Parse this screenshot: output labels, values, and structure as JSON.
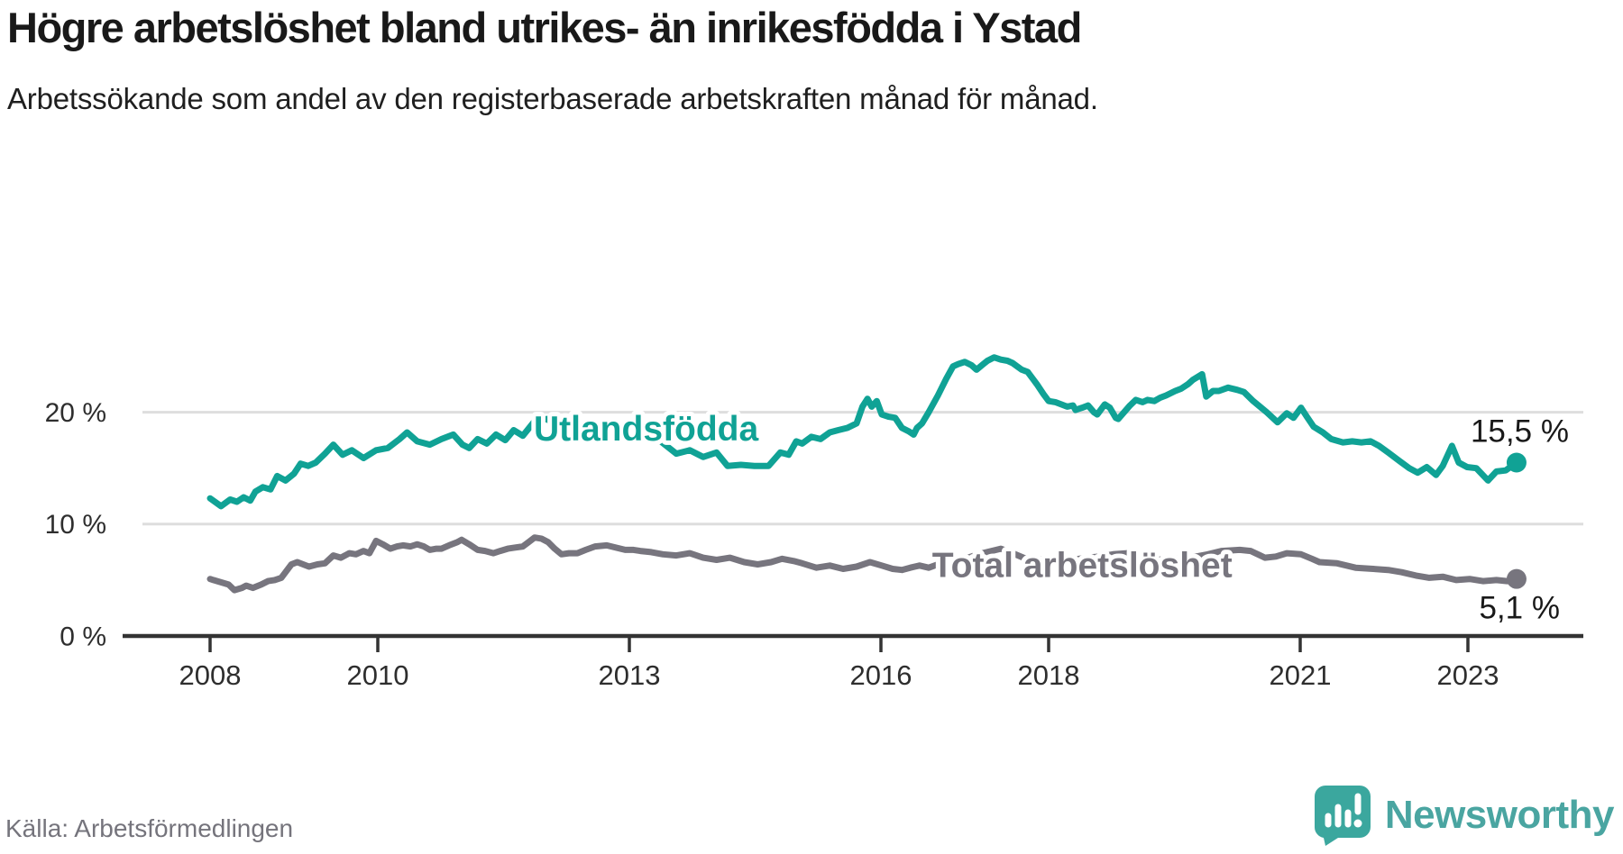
{
  "header": {
    "title": "Högre arbetslöshet bland utrikes- än inrikesfödda i Ystad",
    "subtitle": "Arbetssökande som andel av den registerbaserade arbetskraften månad för månad."
  },
  "footer": {
    "source": "Källa: Arbetsförmedlingen",
    "brand": "Newsworthy"
  },
  "colors": {
    "teal_line": "#10a295",
    "gray_line": "#77757e",
    "grid": "#dedede",
    "axis": "#333333",
    "tick_text": "#2e2e2e",
    "value_text": "#191919",
    "brand_teal": "#3ba79e"
  },
  "chart_data": {
    "type": "line",
    "title": "Högre arbetslöshet bland utrikes- än inrikesfödda i Ystad",
    "subtitle": "Arbetssökande som andel av den registerbaserade arbetskraften månad för månad.",
    "unit": "%",
    "x_axis": {
      "range": [
        2007.85,
        2024.15
      ],
      "tick_years": [
        2008,
        2010,
        2013,
        2016,
        2018,
        2021,
        2023
      ],
      "grid": false
    },
    "y_axis": {
      "range": [
        0,
        30
      ],
      "tick_values": [
        0,
        10,
        20
      ],
      "tick_labels": [
        "0 %",
        "10 %",
        "20 %"
      ],
      "grid": true
    },
    "legend_position": "inline-labels",
    "series": [
      {
        "name": "Utlandsfödda",
        "color": "#10a295",
        "end_label": "15,5 %",
        "end_value": 15.5,
        "label_pos": {
          "t": 2013.2,
          "v": 18.3
        },
        "points": [
          [
            2008.0,
            12.3
          ],
          [
            2008.13,
            11.6
          ],
          [
            2008.24,
            12.2
          ],
          [
            2008.32,
            12.0
          ],
          [
            2008.4,
            12.4
          ],
          [
            2008.48,
            12.1
          ],
          [
            2008.54,
            12.9
          ],
          [
            2008.63,
            13.3
          ],
          [
            2008.72,
            13.1
          ],
          [
            2008.8,
            14.3
          ],
          [
            2008.9,
            13.9
          ],
          [
            2009.0,
            14.5
          ],
          [
            2009.08,
            15.4
          ],
          [
            2009.17,
            15.2
          ],
          [
            2009.26,
            15.5
          ],
          [
            2009.37,
            16.3
          ],
          [
            2009.47,
            17.1
          ],
          [
            2009.58,
            16.2
          ],
          [
            2009.69,
            16.6
          ],
          [
            2009.83,
            15.9
          ],
          [
            2009.98,
            16.6
          ],
          [
            2010.12,
            16.8
          ],
          [
            2010.26,
            17.6
          ],
          [
            2010.35,
            18.2
          ],
          [
            2010.47,
            17.4
          ],
          [
            2010.62,
            17.1
          ],
          [
            2010.76,
            17.6
          ],
          [
            2010.9,
            18.0
          ],
          [
            2011.01,
            17.1
          ],
          [
            2011.09,
            16.8
          ],
          [
            2011.19,
            17.6
          ],
          [
            2011.3,
            17.2
          ],
          [
            2011.41,
            18.0
          ],
          [
            2011.52,
            17.5
          ],
          [
            2011.62,
            18.4
          ],
          [
            2011.73,
            17.9
          ],
          [
            2011.87,
            19.2
          ],
          [
            2012.02,
            19.4
          ],
          [
            2012.13,
            18.7
          ],
          [
            2012.27,
            19.2
          ],
          [
            2012.46,
            18.2
          ],
          [
            2012.59,
            18.9
          ],
          [
            2012.73,
            18.9
          ],
          [
            2012.95,
            18.7
          ],
          [
            2013.13,
            18.4
          ],
          [
            2013.34,
            17.6
          ],
          [
            2013.56,
            16.3
          ],
          [
            2013.72,
            16.6
          ],
          [
            2013.88,
            16.0
          ],
          [
            2014.04,
            16.4
          ],
          [
            2014.17,
            15.2
          ],
          [
            2014.33,
            15.3
          ],
          [
            2014.49,
            15.2
          ],
          [
            2014.66,
            15.2
          ],
          [
            2014.8,
            16.4
          ],
          [
            2014.9,
            16.2
          ],
          [
            2014.99,
            17.4
          ],
          [
            2015.06,
            17.2
          ],
          [
            2015.17,
            17.8
          ],
          [
            2015.28,
            17.6
          ],
          [
            2015.39,
            18.2
          ],
          [
            2015.49,
            18.4
          ],
          [
            2015.6,
            18.6
          ],
          [
            2015.71,
            19.0
          ],
          [
            2015.78,
            20.5
          ],
          [
            2015.84,
            21.2
          ],
          [
            2015.89,
            20.5
          ],
          [
            2015.95,
            21.0
          ],
          [
            2016.01,
            19.8
          ],
          [
            2016.09,
            19.6
          ],
          [
            2016.17,
            19.5
          ],
          [
            2016.25,
            18.6
          ],
          [
            2016.33,
            18.3
          ],
          [
            2016.39,
            18.0
          ],
          [
            2016.43,
            18.6
          ],
          [
            2016.49,
            19.0
          ],
          [
            2016.57,
            20.0
          ],
          [
            2016.68,
            21.5
          ],
          [
            2016.78,
            23.0
          ],
          [
            2016.86,
            24.1
          ],
          [
            2016.92,
            24.3
          ],
          [
            2017.0,
            24.5
          ],
          [
            2017.08,
            24.2
          ],
          [
            2017.14,
            23.8
          ],
          [
            2017.22,
            24.3
          ],
          [
            2017.27,
            24.6
          ],
          [
            2017.35,
            24.9
          ],
          [
            2017.43,
            24.7
          ],
          [
            2017.51,
            24.6
          ],
          [
            2017.57,
            24.4
          ],
          [
            2017.68,
            23.8
          ],
          [
            2017.75,
            23.6
          ],
          [
            2017.86,
            22.5
          ],
          [
            2017.94,
            21.6
          ],
          [
            2018.0,
            21.0
          ],
          [
            2018.08,
            20.9
          ],
          [
            2018.15,
            20.7
          ],
          [
            2018.22,
            20.5
          ],
          [
            2018.29,
            20.6
          ],
          [
            2018.32,
            20.2
          ],
          [
            2018.4,
            20.4
          ],
          [
            2018.47,
            20.6
          ],
          [
            2018.54,
            20.0
          ],
          [
            2018.58,
            19.8
          ],
          [
            2018.67,
            20.7
          ],
          [
            2018.73,
            20.4
          ],
          [
            2018.8,
            19.5
          ],
          [
            2018.83,
            19.4
          ],
          [
            2018.9,
            20.0
          ],
          [
            2018.97,
            20.6
          ],
          [
            2019.04,
            21.1
          ],
          [
            2019.12,
            20.9
          ],
          [
            2019.18,
            21.1
          ],
          [
            2019.26,
            21.0
          ],
          [
            2019.33,
            21.3
          ],
          [
            2019.4,
            21.5
          ],
          [
            2019.51,
            21.9
          ],
          [
            2019.58,
            22.1
          ],
          [
            2019.66,
            22.5
          ],
          [
            2019.72,
            22.9
          ],
          [
            2019.83,
            23.4
          ],
          [
            2019.88,
            21.4
          ],
          [
            2019.96,
            21.9
          ],
          [
            2020.03,
            21.9
          ],
          [
            2020.14,
            22.2
          ],
          [
            2020.25,
            22.0
          ],
          [
            2020.33,
            21.8
          ],
          [
            2020.44,
            21.0
          ],
          [
            2020.6,
            20.0
          ],
          [
            2020.73,
            19.1
          ],
          [
            2020.84,
            19.9
          ],
          [
            2020.92,
            19.5
          ],
          [
            2021.01,
            20.4
          ],
          [
            2021.08,
            19.6
          ],
          [
            2021.16,
            18.7
          ],
          [
            2021.27,
            18.2
          ],
          [
            2021.37,
            17.6
          ],
          [
            2021.51,
            17.3
          ],
          [
            2021.62,
            17.4
          ],
          [
            2021.73,
            17.3
          ],
          [
            2021.84,
            17.4
          ],
          [
            2021.94,
            17.0
          ],
          [
            2022.05,
            16.4
          ],
          [
            2022.19,
            15.6
          ],
          [
            2022.3,
            15.0
          ],
          [
            2022.4,
            14.6
          ],
          [
            2022.51,
            15.1
          ],
          [
            2022.62,
            14.4
          ],
          [
            2022.7,
            15.2
          ],
          [
            2022.81,
            17.0
          ],
          [
            2022.89,
            15.5
          ],
          [
            2022.99,
            15.1
          ],
          [
            2023.1,
            15.0
          ],
          [
            2023.24,
            13.9
          ],
          [
            2023.34,
            14.7
          ],
          [
            2023.45,
            14.8
          ],
          [
            2023.58,
            15.5
          ]
        ]
      },
      {
        "name": "Total arbetslöshet",
        "color": "#77757e",
        "end_label": "5,1 %",
        "end_value": 5.1,
        "label_pos": {
          "t": 2018.4,
          "v": 6.1
        },
        "points": [
          [
            2008.0,
            5.1
          ],
          [
            2008.04,
            5.0
          ],
          [
            2008.13,
            4.8
          ],
          [
            2008.22,
            4.6
          ],
          [
            2008.29,
            4.1
          ],
          [
            2008.38,
            4.3
          ],
          [
            2008.43,
            4.5
          ],
          [
            2008.51,
            4.3
          ],
          [
            2008.61,
            4.6
          ],
          [
            2008.69,
            4.9
          ],
          [
            2008.77,
            5.0
          ],
          [
            2008.85,
            5.2
          ],
          [
            2008.97,
            6.4
          ],
          [
            2009.04,
            6.6
          ],
          [
            2009.18,
            6.2
          ],
          [
            2009.28,
            6.4
          ],
          [
            2009.37,
            6.5
          ],
          [
            2009.47,
            7.2
          ],
          [
            2009.56,
            7.0
          ],
          [
            2009.66,
            7.4
          ],
          [
            2009.74,
            7.3
          ],
          [
            2009.83,
            7.6
          ],
          [
            2009.9,
            7.4
          ],
          [
            2009.98,
            8.5
          ],
          [
            2010.06,
            8.2
          ],
          [
            2010.15,
            7.8
          ],
          [
            2010.23,
            8.0
          ],
          [
            2010.3,
            8.1
          ],
          [
            2010.39,
            8.0
          ],
          [
            2010.47,
            8.2
          ],
          [
            2010.55,
            8.0
          ],
          [
            2010.62,
            7.7
          ],
          [
            2010.7,
            7.8
          ],
          [
            2010.76,
            7.8
          ],
          [
            2010.85,
            8.1
          ],
          [
            2010.95,
            8.4
          ],
          [
            2011.0,
            8.6
          ],
          [
            2011.09,
            8.2
          ],
          [
            2011.19,
            7.7
          ],
          [
            2011.28,
            7.6
          ],
          [
            2011.38,
            7.4
          ],
          [
            2011.46,
            7.6
          ],
          [
            2011.55,
            7.8
          ],
          [
            2011.63,
            7.9
          ],
          [
            2011.73,
            8.0
          ],
          [
            2011.8,
            8.4
          ],
          [
            2011.87,
            8.8
          ],
          [
            2011.95,
            8.7
          ],
          [
            2012.03,
            8.4
          ],
          [
            2012.11,
            7.8
          ],
          [
            2012.19,
            7.3
          ],
          [
            2012.28,
            7.4
          ],
          [
            2012.38,
            7.4
          ],
          [
            2012.48,
            7.7
          ],
          [
            2012.59,
            8.0
          ],
          [
            2012.73,
            8.1
          ],
          [
            2012.84,
            7.9
          ],
          [
            2012.95,
            7.7
          ],
          [
            2013.05,
            7.7
          ],
          [
            2013.13,
            7.6
          ],
          [
            2013.26,
            7.5
          ],
          [
            2013.4,
            7.3
          ],
          [
            2013.56,
            7.2
          ],
          [
            2013.72,
            7.4
          ],
          [
            2013.88,
            7.0
          ],
          [
            2014.04,
            6.8
          ],
          [
            2014.2,
            7.0
          ],
          [
            2014.37,
            6.6
          ],
          [
            2014.53,
            6.4
          ],
          [
            2014.69,
            6.6
          ],
          [
            2014.82,
            6.9
          ],
          [
            2014.96,
            6.7
          ],
          [
            2015.06,
            6.5
          ],
          [
            2015.23,
            6.1
          ],
          [
            2015.39,
            6.3
          ],
          [
            2015.55,
            6.0
          ],
          [
            2015.71,
            6.2
          ],
          [
            2015.87,
            6.6
          ],
          [
            2016.01,
            6.3
          ],
          [
            2016.14,
            6.0
          ],
          [
            2016.25,
            5.9
          ],
          [
            2016.35,
            6.1
          ],
          [
            2016.46,
            6.3
          ],
          [
            2016.57,
            6.1
          ],
          [
            2016.68,
            6.4
          ],
          [
            2016.84,
            6.6
          ],
          [
            2017.0,
            6.9
          ],
          [
            2017.16,
            7.3
          ],
          [
            2017.32,
            7.6
          ],
          [
            2017.43,
            7.8
          ],
          [
            2017.54,
            7.5
          ],
          [
            2017.7,
            7.0
          ],
          [
            2017.81,
            6.8
          ],
          [
            2017.97,
            6.9
          ],
          [
            2018.13,
            6.7
          ],
          [
            2018.29,
            6.8
          ],
          [
            2018.45,
            7.0
          ],
          [
            2018.61,
            7.1
          ],
          [
            2018.77,
            7.3
          ],
          [
            2018.94,
            7.4
          ],
          [
            2019.04,
            7.2
          ],
          [
            2019.2,
            6.9
          ],
          [
            2019.37,
            6.8
          ],
          [
            2019.53,
            6.9
          ],
          [
            2019.69,
            7.0
          ],
          [
            2019.9,
            7.3
          ],
          [
            2020.06,
            7.6
          ],
          [
            2020.28,
            7.7
          ],
          [
            2020.41,
            7.6
          ],
          [
            2020.58,
            7.0
          ],
          [
            2020.71,
            7.1
          ],
          [
            2020.84,
            7.4
          ],
          [
            2021.01,
            7.3
          ],
          [
            2021.14,
            6.9
          ],
          [
            2021.23,
            6.6
          ],
          [
            2021.44,
            6.5
          ],
          [
            2021.66,
            6.1
          ],
          [
            2021.87,
            6.0
          ],
          [
            2022.05,
            5.9
          ],
          [
            2022.21,
            5.7
          ],
          [
            2022.38,
            5.4
          ],
          [
            2022.54,
            5.2
          ],
          [
            2022.7,
            5.3
          ],
          [
            2022.86,
            5.0
          ],
          [
            2023.02,
            5.1
          ],
          [
            2023.18,
            4.9
          ],
          [
            2023.34,
            5.0
          ],
          [
            2023.47,
            4.9
          ],
          [
            2023.58,
            5.1
          ]
        ]
      }
    ]
  }
}
